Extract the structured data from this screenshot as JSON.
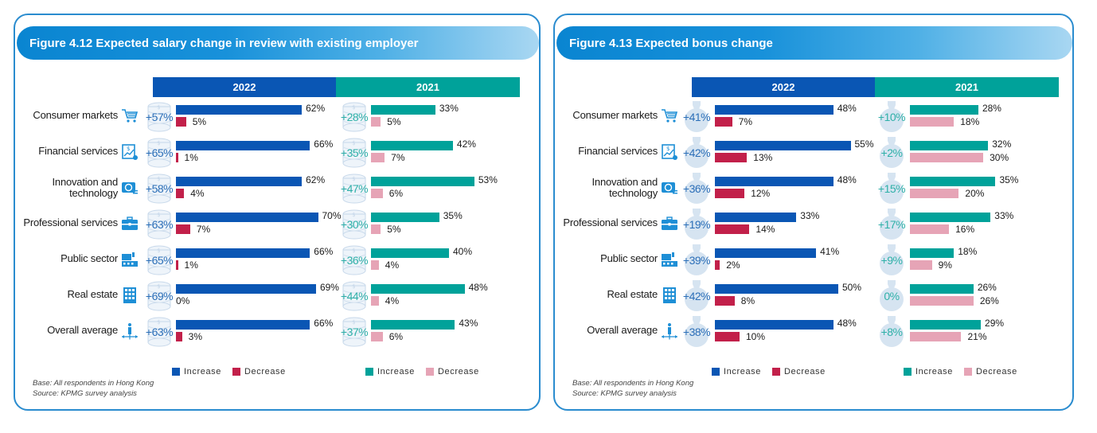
{
  "legend": {
    "increase": "Increase",
    "decrease": "Decrease"
  },
  "notes": {
    "base": "Base: All respondents in Hong Kong",
    "source": "Source: KPMG survey analysis"
  },
  "colors": {
    "increase_2022": "#0a56b4",
    "decrease_2022": "#c2204a",
    "increase_2021": "#00a29a",
    "decrease_2021": "#e6a4b6",
    "title_band": "#1891da"
  },
  "chart_data": [
    {
      "type": "bar",
      "title": "Figure 4.12 Expected salary change in review with existing employer",
      "orientation": "horizontal",
      "panels": [
        "2022",
        "2021"
      ],
      "categories": [
        {
          "label": "Consumer markets",
          "icon": "shopping-cart-icon"
        },
        {
          "label": "Financial services",
          "icon": "financial-chart-icon"
        },
        {
          "label": "Innovation and technology",
          "icon": "money-tech-icon"
        },
        {
          "label": "Professional services",
          "icon": "briefcase-icon"
        },
        {
          "label": "Public sector",
          "icon": "public-building-icon"
        },
        {
          "label": "Real estate",
          "icon": "office-building-icon"
        },
        {
          "label": "Overall average",
          "icon": "person-arrows-icon"
        }
      ],
      "series": [
        {
          "name": "2022 Increase",
          "values": [
            62,
            66,
            62,
            70,
            66,
            69,
            66
          ]
        },
        {
          "name": "2022 Decrease",
          "values": [
            5,
            1,
            4,
            7,
            1,
            0,
            3
          ]
        },
        {
          "name": "2021 Increase",
          "values": [
            33,
            42,
            53,
            35,
            40,
            48,
            43
          ]
        },
        {
          "name": "2021 Decrease",
          "values": [
            5,
            7,
            6,
            5,
            4,
            4,
            6
          ]
        }
      ],
      "net_2022": [
        "+57%",
        "+65%",
        "+58%",
        "+63%",
        "+65%",
        "+69%",
        "+63%"
      ],
      "net_2021": [
        "+28%",
        "+35%",
        "+47%",
        "+30%",
        "+36%",
        "+44%",
        "+37%"
      ],
      "net_decoration": "coin-stack-icon",
      "unit": "%",
      "xlim": [
        0,
        100
      ],
      "legend": "bottom"
    },
    {
      "type": "bar",
      "title": "Figure 4.13 Expected bonus change",
      "orientation": "horizontal",
      "panels": [
        "2022",
        "2021"
      ],
      "categories": [
        {
          "label": "Consumer markets",
          "icon": "shopping-cart-icon"
        },
        {
          "label": "Financial services",
          "icon": "financial-chart-icon"
        },
        {
          "label": "Innovation and technology",
          "icon": "money-tech-icon"
        },
        {
          "label": "Professional services",
          "icon": "briefcase-icon"
        },
        {
          "label": "Public sector",
          "icon": "public-building-icon"
        },
        {
          "label": "Real estate",
          "icon": "office-building-icon"
        },
        {
          "label": "Overall average",
          "icon": "person-arrows-icon"
        }
      ],
      "series": [
        {
          "name": "2022 Increase",
          "values": [
            48,
            55,
            48,
            33,
            41,
            50,
            48
          ]
        },
        {
          "name": "2022 Decrease",
          "values": [
            7,
            13,
            12,
            14,
            2,
            8,
            10
          ]
        },
        {
          "name": "2021 Increase",
          "values": [
            28,
            32,
            35,
            33,
            18,
            26,
            29
          ]
        },
        {
          "name": "2021 Decrease",
          "values": [
            18,
            30,
            20,
            16,
            9,
            26,
            21
          ]
        }
      ],
      "net_2022": [
        "+41%",
        "+42%",
        "+36%",
        "+19%",
        "+39%",
        "+42%",
        "+38%"
      ],
      "net_2021": [
        "+10%",
        "+2%",
        "+15%",
        "+17%",
        "+9%",
        "0%",
        "+8%"
      ],
      "net_decoration": "money-bag-icon",
      "unit": "%",
      "xlim": [
        0,
        100
      ],
      "legend": "bottom"
    }
  ]
}
